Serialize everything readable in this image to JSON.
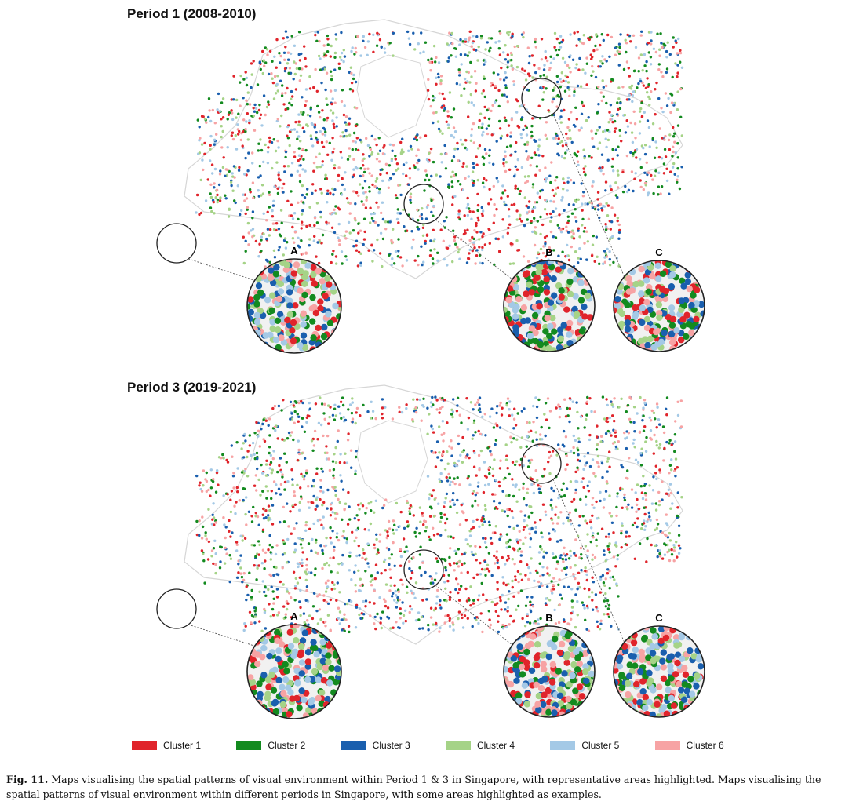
{
  "panels": [
    {
      "title": "Period 1 (2008-2010)",
      "insets": [
        "A",
        "B",
        "C"
      ],
      "seed": 11
    },
    {
      "title": "Period 3 (2019-2021)",
      "insets": [
        "A",
        "B",
        "C"
      ],
      "seed": 37
    }
  ],
  "legend": [
    {
      "label": "Cluster 1",
      "color": "#e0242b"
    },
    {
      "label": "Cluster 2",
      "color": "#138a1f"
    },
    {
      "label": "Cluster 3",
      "color": "#1a5fae"
    },
    {
      "label": "Cluster 4",
      "color": "#a5d387"
    },
    {
      "label": "Cluster 5",
      "color": "#a4c9e6"
    },
    {
      "label": "Cluster 6",
      "color": "#f7a3a4"
    }
  ],
  "caption": {
    "label": "Fig. 11.",
    "text": "Maps visualising the spatial patterns of visual environment within Period 1 & 3 in Singapore, with representative areas highlighted. Maps visualising the spatial patterns of visual environment within different periods in Singapore, with some areas highlighted as examples."
  }
}
